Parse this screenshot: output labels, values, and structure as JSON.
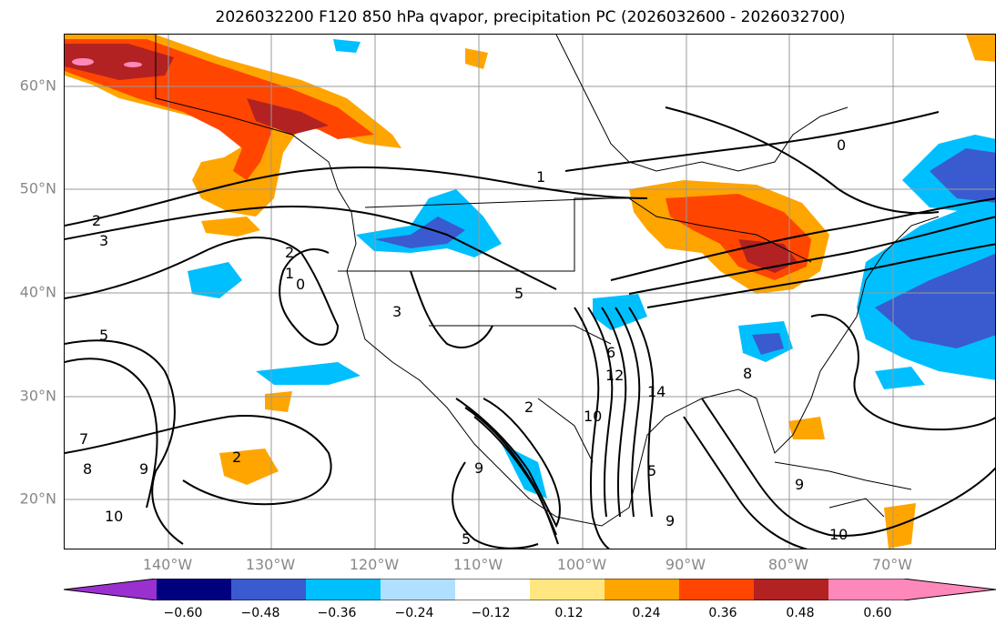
{
  "title": "2026032200 F120 850 hPa qvapor, precipitation PC (2026032600 - 2026032700)",
  "lat_labels": [
    "60°N",
    "50°N",
    "40°N",
    "30°N",
    "20°N"
  ],
  "lon_labels": [
    "140°W",
    "130°W",
    "120°W",
    "110°W",
    "100°W",
    "90°W",
    "80°W",
    "70°W"
  ],
  "colorbar": {
    "ticks": [
      "−0.60",
      "−0.48",
      "−0.36",
      "−0.24",
      "−0.12",
      "0.12",
      "0.24",
      "0.36",
      "0.48",
      "0.60"
    ],
    "colors": [
      "#9b30d0",
      "#00007f",
      "#3a5bcf",
      "#00bfff",
      "#b0e0ff",
      "#ffffff",
      "#ffe680",
      "#ffa500",
      "#ff4500",
      "#b22222",
      "#ff88bb",
      "#ff88bb"
    ],
    "under_color": "#9b30d0",
    "over_color": "#ff88bb"
  },
  "contour_labels": [
    "0",
    "1",
    "2",
    "3",
    "5",
    "6",
    "7",
    "8",
    "9",
    "10",
    "12",
    "14"
  ]
}
